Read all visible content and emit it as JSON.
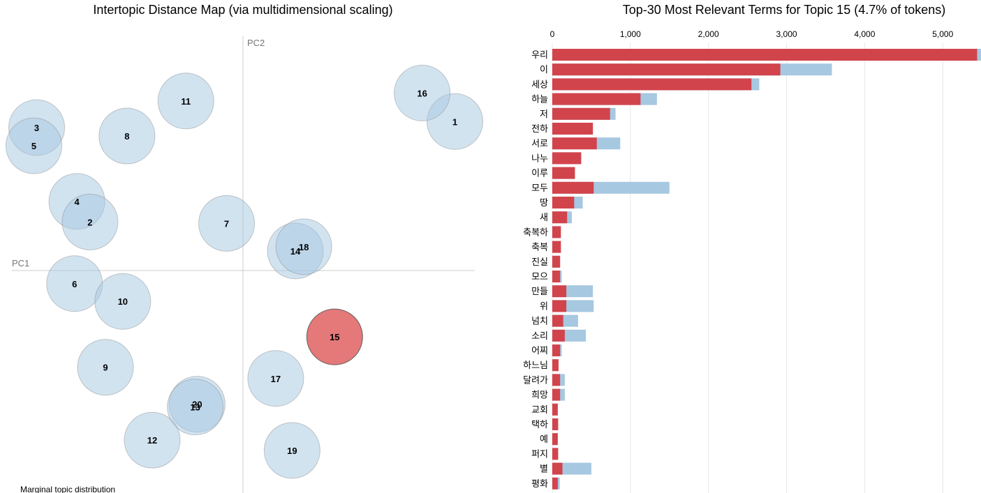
{
  "chart_data": [
    {
      "type": "scatter",
      "title": "Intertopic Distance Map (via multidimensional scaling)",
      "xlabel": "PC1",
      "ylabel": "PC2",
      "legend_text": "Marginal topic distribution",
      "selected_topic": "15",
      "colors": {
        "default_fill": "#a6c8e1",
        "selected_fill": "#e06060",
        "stroke": "#888888"
      },
      "points": [
        {
          "label": "1",
          "pc1": 0.453,
          "pc2": 0.319
        },
        {
          "label": "16",
          "pc1": 0.383,
          "pc2": 0.38
        },
        {
          "label": "11",
          "pc1": -0.122,
          "pc2": 0.363
        },
        {
          "label": "8",
          "pc1": -0.248,
          "pc2": 0.288
        },
        {
          "label": "3",
          "pc1": -0.441,
          "pc2": 0.306
        },
        {
          "label": "5",
          "pc1": -0.447,
          "pc2": 0.267
        },
        {
          "label": "4",
          "pc1": -0.355,
          "pc2": 0.148
        },
        {
          "label": "2",
          "pc1": -0.327,
          "pc2": 0.104
        },
        {
          "label": "7",
          "pc1": -0.035,
          "pc2": 0.101
        },
        {
          "label": "14",
          "pc1": 0.112,
          "pc2": 0.042
        },
        {
          "label": "18",
          "pc1": 0.13,
          "pc2": 0.051
        },
        {
          "label": "6",
          "pc1": -0.36,
          "pc2": -0.028
        },
        {
          "label": "10",
          "pc1": -0.257,
          "pc2": -0.066
        },
        {
          "label": "15",
          "pc1": 0.196,
          "pc2": -0.142
        },
        {
          "label": "9",
          "pc1": -0.294,
          "pc2": -0.207
        },
        {
          "label": "17",
          "pc1": 0.07,
          "pc2": -0.231
        },
        {
          "label": "20",
          "pc1": -0.098,
          "pc2": -0.286
        },
        {
          "label": "13",
          "pc1": -0.102,
          "pc2": -0.292
        },
        {
          "label": "12",
          "pc1": -0.194,
          "pc2": -0.363
        },
        {
          "label": "19",
          "pc1": 0.105,
          "pc2": -0.385
        }
      ]
    },
    {
      "type": "bar",
      "orientation": "horizontal",
      "title": "Top-30 Most Relevant Terms for Topic 15 (4.7% of tokens)",
      "xlim": [
        0,
        5500
      ],
      "xticks": [
        "0",
        "1,000",
        "2,000",
        "3,000",
        "4,000",
        "5,000"
      ],
      "xtick_values": [
        0,
        1000,
        2000,
        3000,
        4000,
        5000
      ],
      "colors": {
        "overall": "#a6c8e1",
        "topic": "#d2444c"
      },
      "categories": [
        "우리",
        "이",
        "세상",
        "하늘",
        "저",
        "전하",
        "서로",
        "나누",
        "이루",
        "모두",
        "땅",
        "새",
        "축복하",
        "축복",
        "진실",
        "모으",
        "만들",
        "위",
        "넘치",
        "소리",
        "어찌",
        "하느님",
        "달려가",
        "희망",
        "교회",
        "택하",
        "예",
        "퍼지",
        "별",
        "평화"
      ],
      "series": [
        {
          "key": "overall",
          "values": [
            5490,
            3580,
            2650,
            1340,
            810,
            520,
            870,
            370,
            290,
            1500,
            390,
            250,
            110,
            110,
            100,
            120,
            520,
            530,
            330,
            430,
            120,
            80,
            160,
            160,
            70,
            75,
            70,
            75,
            500,
            95
          ]
        },
        {
          "key": "topic",
          "values": [
            5440,
            2920,
            2550,
            1130,
            740,
            520,
            570,
            370,
            290,
            530,
            280,
            190,
            110,
            110,
            100,
            100,
            180,
            180,
            140,
            160,
            100,
            80,
            100,
            100,
            70,
            75,
            70,
            75,
            130,
            70
          ]
        }
      ]
    }
  ]
}
